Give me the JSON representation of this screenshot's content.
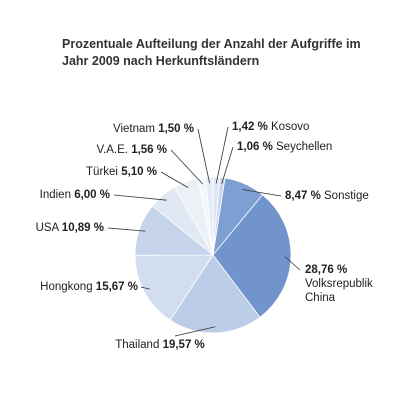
{
  "chart_data": {
    "type": "pie",
    "title": "Prozentuale Aufteilung der Anzahl der Aufgriffe im Jahr 2009 nach Herkunftsländern",
    "categories": [
      "Kosovo",
      "Seychellen",
      "Sonstige",
      "Volksrepublik China",
      "Thailand",
      "Hongkong",
      "USA",
      "Indien",
      "Türkei",
      "V.A.E.",
      "Vietnam"
    ],
    "values": [
      1.42,
      1.06,
      8.47,
      28.76,
      19.57,
      15.67,
      10.89,
      6.0,
      5.1,
      1.56,
      1.5
    ],
    "value_labels": [
      "1,42 %",
      "1,06 %",
      "8,47 %",
      "28,76 %",
      "19,57 %",
      "15,67 %",
      "10,89 %",
      "6,00 %",
      "5,10 %",
      "1,56 %",
      "1,50 %"
    ],
    "colors": [
      "#dde6f3",
      "#c9d7ec",
      "#7d9fd2",
      "#7194cc",
      "#bccde8",
      "#d2deef",
      "#c5d4eb",
      "#e0e8f4",
      "#ecf1f8",
      "#f3f6fb",
      "#e4ebf6"
    ]
  }
}
